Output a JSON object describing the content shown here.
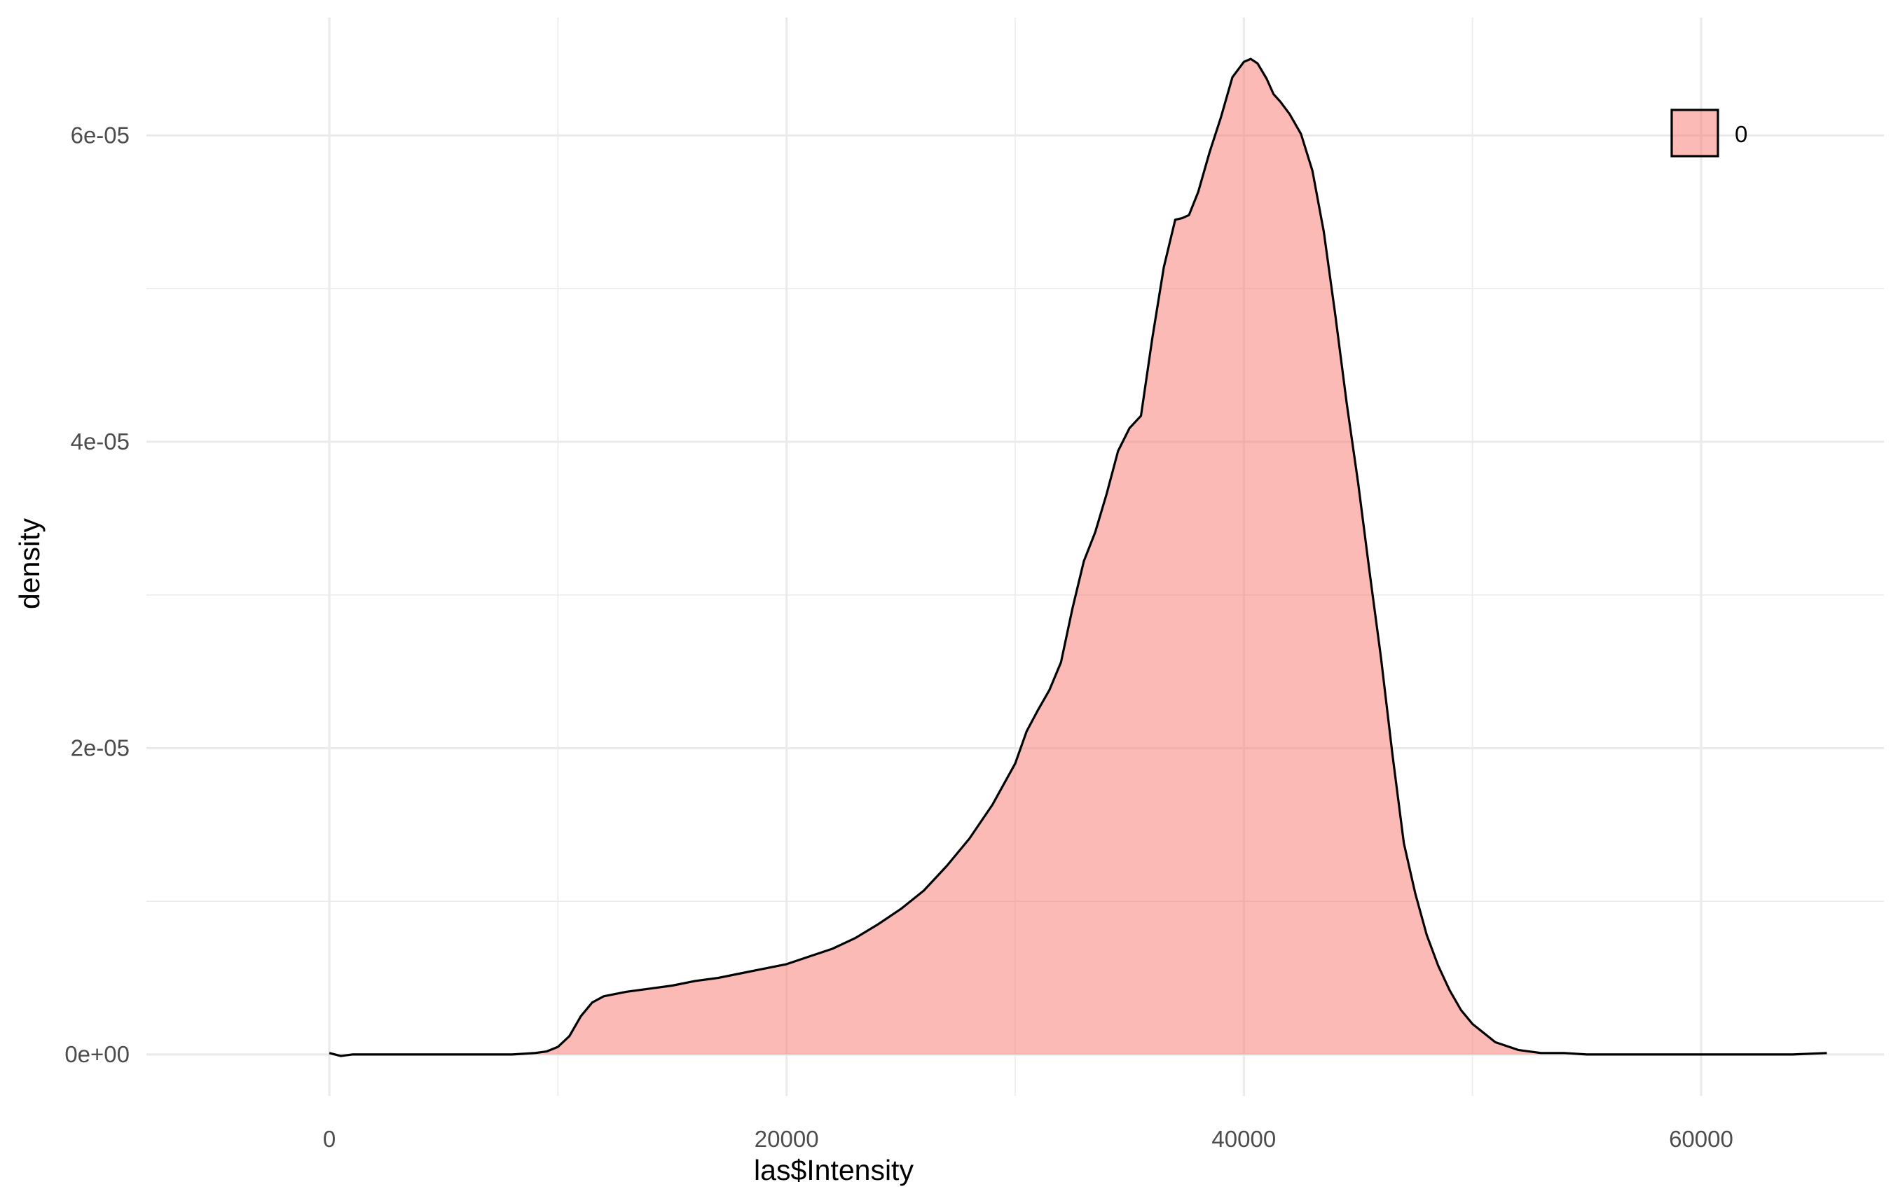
{
  "chart_data": {
    "type": "area",
    "xlabel": "las$Intensity",
    "ylabel": "density",
    "xlim": [
      -8000,
      68000
    ],
    "ylim": [
      -2.7e-06,
      6.77e-05
    ],
    "x_ticks": [
      0,
      20000,
      40000,
      60000
    ],
    "x_tick_labels": [
      "0",
      "20000",
      "40000",
      "60000"
    ],
    "y_ticks": [
      0,
      2e-05,
      4e-05,
      6e-05
    ],
    "y_tick_labels": [
      "0e+00",
      "2e-05",
      "4e-05",
      "6e-05"
    ],
    "grid": true,
    "legend_position": "top-right",
    "fill_color": "#f8766d",
    "fill_alpha": 0.5,
    "line_color": "#000000",
    "series": [
      {
        "name": "0",
        "x": [
          0,
          500,
          1000,
          2000,
          4000,
          6000,
          8000,
          9000,
          9500,
          10000,
          10500,
          11000,
          11500,
          12000,
          13000,
          14000,
          15000,
          16000,
          17000,
          18000,
          19000,
          20000,
          21000,
          22000,
          23000,
          24000,
          25000,
          26000,
          27000,
          28000,
          29000,
          30000,
          30500,
          31000,
          31500,
          32000,
          32500,
          33000,
          33500,
          34000,
          34500,
          35000,
          35500,
          36000,
          36500,
          37000,
          37300,
          37600,
          38000,
          38500,
          39000,
          39500,
          40000,
          40300,
          40600,
          41000,
          41300,
          41600,
          42000,
          42500,
          43000,
          43500,
          44000,
          44500,
          45000,
          45500,
          46000,
          46500,
          47000,
          47500,
          48000,
          48500,
          49000,
          49500,
          50000,
          51000,
          52000,
          53000,
          54000,
          55000,
          56000,
          58000,
          60000,
          62000,
          64000,
          65500
        ],
        "y": [
          1e-07,
          -1e-07,
          0,
          0,
          0,
          0,
          0,
          1e-07,
          2e-07,
          5e-07,
          1.2e-06,
          2.5e-06,
          3.4e-06,
          3.8e-06,
          4.1e-06,
          4.3e-06,
          4.5e-06,
          4.8e-06,
          5e-06,
          5.3e-06,
          5.6e-06,
          5.9e-06,
          6.4e-06,
          6.9e-06,
          7.6e-06,
          8.5e-06,
          9.5e-06,
          1.07e-05,
          1.23e-05,
          1.41e-05,
          1.63e-05,
          1.9e-05,
          2.11e-05,
          2.25e-05,
          2.38e-05,
          2.56e-05,
          2.91e-05,
          3.22e-05,
          3.41e-05,
          3.66e-05,
          3.94e-05,
          4.09e-05,
          4.17e-05,
          4.68e-05,
          5.14e-05,
          5.45e-05,
          5.46e-05,
          5.48e-05,
          5.63e-05,
          5.89e-05,
          6.12e-05,
          6.38e-05,
          6.48e-05,
          6.5e-05,
          6.47e-05,
          6.37e-05,
          6.27e-05,
          6.22e-05,
          6.14e-05,
          6.01e-05,
          5.77e-05,
          5.37e-05,
          4.83e-05,
          4.25e-05,
          3.73e-05,
          3.15e-05,
          2.59e-05,
          1.96e-05,
          1.38e-05,
          1.05e-05,
          7.8e-06,
          5.8e-06,
          4.2e-06,
          2.9e-06,
          2e-06,
          8e-07,
          3e-07,
          1e-07,
          1e-07,
          0,
          0,
          0,
          0,
          0,
          0,
          1e-07
        ]
      }
    ]
  }
}
